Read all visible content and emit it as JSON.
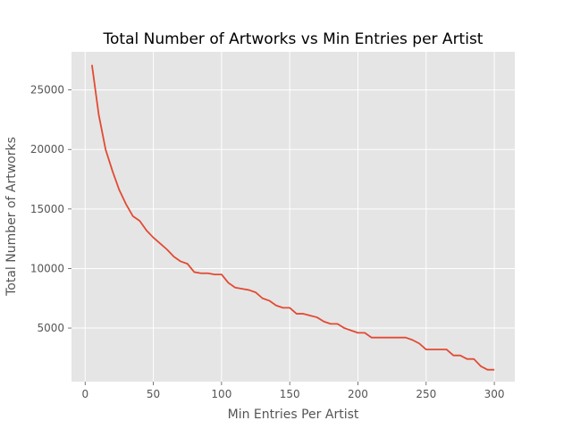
{
  "chart_data": {
    "type": "line",
    "title": "Total Number of Artworks vs Min Entries per Artist",
    "xlabel": "Min Entries Per Artist",
    "ylabel": "Total Number of Artworks",
    "xlim": [
      -10,
      315
    ],
    "ylim": [
      500,
      28200
    ],
    "xticks": [
      0,
      50,
      100,
      150,
      200,
      250,
      300
    ],
    "yticks": [
      5000,
      10000,
      15000,
      20000,
      25000
    ],
    "xtick_labels": [
      "0",
      "50",
      "100",
      "150",
      "200",
      "250",
      "300"
    ],
    "ytick_labels": [
      "5000",
      "10000",
      "15000",
      "20000",
      "25000"
    ],
    "grid": true,
    "colors": {
      "background": "#e5e5e5",
      "line": "#e24a33"
    },
    "series": [
      {
        "x": [
          5,
          10,
          15,
          20,
          25,
          30,
          35,
          40,
          45,
          50,
          55,
          60,
          65,
          70,
          75,
          80,
          85,
          90,
          95,
          100,
          105,
          110,
          115,
          120,
          125,
          130,
          135,
          140,
          145,
          150,
          155,
          160,
          165,
          170,
          175,
          180,
          185,
          190,
          195,
          200,
          205,
          210,
          215,
          220,
          225,
          230,
          235,
          240,
          245,
          250,
          255,
          260,
          265,
          270,
          275,
          280,
          285,
          290,
          295,
          300
        ],
        "y": [
          27100,
          22900,
          20000,
          18200,
          16600,
          15400,
          14400,
          14000,
          13200,
          12600,
          12100,
          11600,
          11000,
          10600,
          10400,
          9700,
          9600,
          9600,
          9500,
          9500,
          8800,
          8400,
          8300,
          8200,
          8000,
          7500,
          7300,
          6900,
          6700,
          6700,
          6200,
          6200,
          6050,
          5900,
          5550,
          5350,
          5350,
          5000,
          4800,
          4600,
          4600,
          4200,
          4200,
          4200,
          4200,
          4200,
          4200,
          4000,
          3700,
          3200,
          3200,
          3200,
          3200,
          2700,
          2700,
          2400,
          2400,
          1800,
          1500,
          1500
        ]
      }
    ]
  }
}
